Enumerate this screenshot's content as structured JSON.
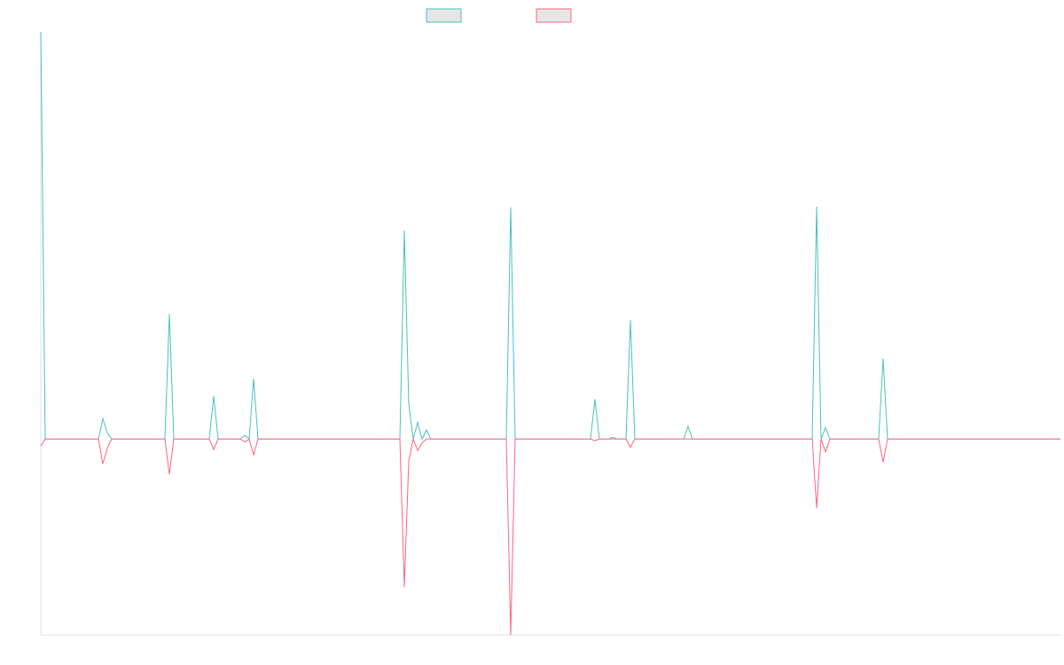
{
  "chart_data": {
    "type": "line",
    "title": "",
    "xlabel": "",
    "ylabel": "",
    "xlim": [
      0,
      230
    ],
    "ylim": [
      -48.1,
      100
    ],
    "grid": false,
    "legend_placement": "top-center",
    "series": [
      {
        "legend_label": "",
        "color": "#4bc0c0",
        "x": [
          0,
          1,
          13,
          14,
          15,
          16,
          28,
          29,
          30,
          38,
          39,
          40,
          45,
          46,
          47,
          48,
          49,
          81,
          82,
          83,
          84,
          85,
          86,
          87,
          88,
          105,
          106,
          107,
          124,
          125,
          126,
          128,
          129,
          130,
          132,
          133,
          134,
          145,
          146,
          147,
          174,
          175,
          176,
          177,
          178,
          189,
          190,
          191,
          230
        ],
        "y": [
          100,
          0,
          0,
          5.0,
          1.5,
          0,
          0,
          30.7,
          0,
          0,
          10.5,
          0,
          0,
          0.9,
          0,
          14.8,
          0,
          0,
          51.2,
          8.7,
          0,
          4.1,
          0,
          2.2,
          0,
          0,
          56.9,
          0,
          0,
          9.8,
          0,
          0,
          0.4,
          0,
          0,
          29.2,
          0,
          0,
          3.1,
          0,
          0,
          57.1,
          0,
          2.8,
          0,
          0,
          19.8,
          0,
          0
        ]
      },
      {
        "legend_label": "",
        "color": "#ff6384",
        "x": [
          0,
          1,
          13,
          14,
          15,
          16,
          28,
          29,
          30,
          38,
          39,
          40,
          45,
          46,
          47,
          48,
          49,
          81,
          82,
          83,
          84,
          85,
          86,
          87,
          88,
          105,
          106,
          107,
          124,
          125,
          126,
          132,
          133,
          134,
          174,
          175,
          176,
          177,
          178,
          189,
          190,
          191,
          230
        ],
        "y": [
          -1.7,
          0,
          0,
          -6.1,
          -2.2,
          0,
          0,
          -8.7,
          0,
          0,
          -2.6,
          0,
          0,
          -0.7,
          0,
          -3.9,
          0,
          0,
          -36.4,
          -5.4,
          0,
          -2.8,
          -1.0,
          0,
          0,
          0,
          -48.1,
          0,
          0,
          -0.4,
          0,
          0,
          -2.0,
          0,
          0,
          -17.0,
          0,
          -3.1,
          0,
          0,
          -5.7,
          0,
          0
        ]
      }
    ]
  }
}
